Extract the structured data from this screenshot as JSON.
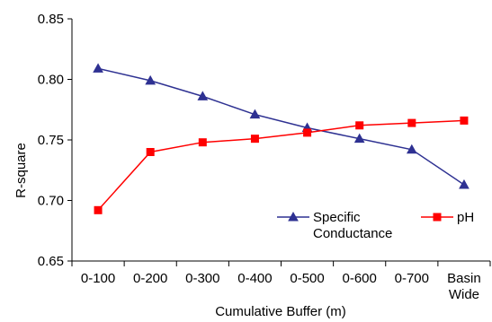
{
  "chart_data": {
    "type": "line",
    "title": "",
    "xlabel": "Cumulative Buffer (m)",
    "ylabel": "R-square",
    "categories": [
      "0-100",
      "0-200",
      "0-300",
      "0-400",
      "0-500",
      "0-600",
      "0-700",
      "Basin Wide"
    ],
    "category_lines": [
      [
        "0-100"
      ],
      [
        "0-200"
      ],
      [
        "0-300"
      ],
      [
        "0-400"
      ],
      [
        "0-500"
      ],
      [
        "0-600"
      ],
      [
        "0-700"
      ],
      [
        "Basin",
        "Wide"
      ]
    ],
    "ylim": [
      0.65,
      0.85
    ],
    "yticks": [
      "0.65",
      "0.70",
      "0.75",
      "0.80",
      "0.85"
    ],
    "grid": false,
    "legend_position": "bottom-right",
    "series": [
      {
        "name": "Specific Conductance",
        "name_lines": [
          "Specific",
          "Conductance"
        ],
        "marker": "triangle",
        "color": "#2E3192",
        "values": [
          0.809,
          0.799,
          0.786,
          0.771,
          0.76,
          0.751,
          0.742,
          0.713
        ]
      },
      {
        "name": "pH",
        "name_lines": [
          "pH"
        ],
        "marker": "square",
        "color": "#FF0000",
        "values": [
          0.692,
          0.74,
          0.748,
          0.751,
          0.756,
          0.762,
          0.764,
          0.766
        ]
      }
    ]
  }
}
